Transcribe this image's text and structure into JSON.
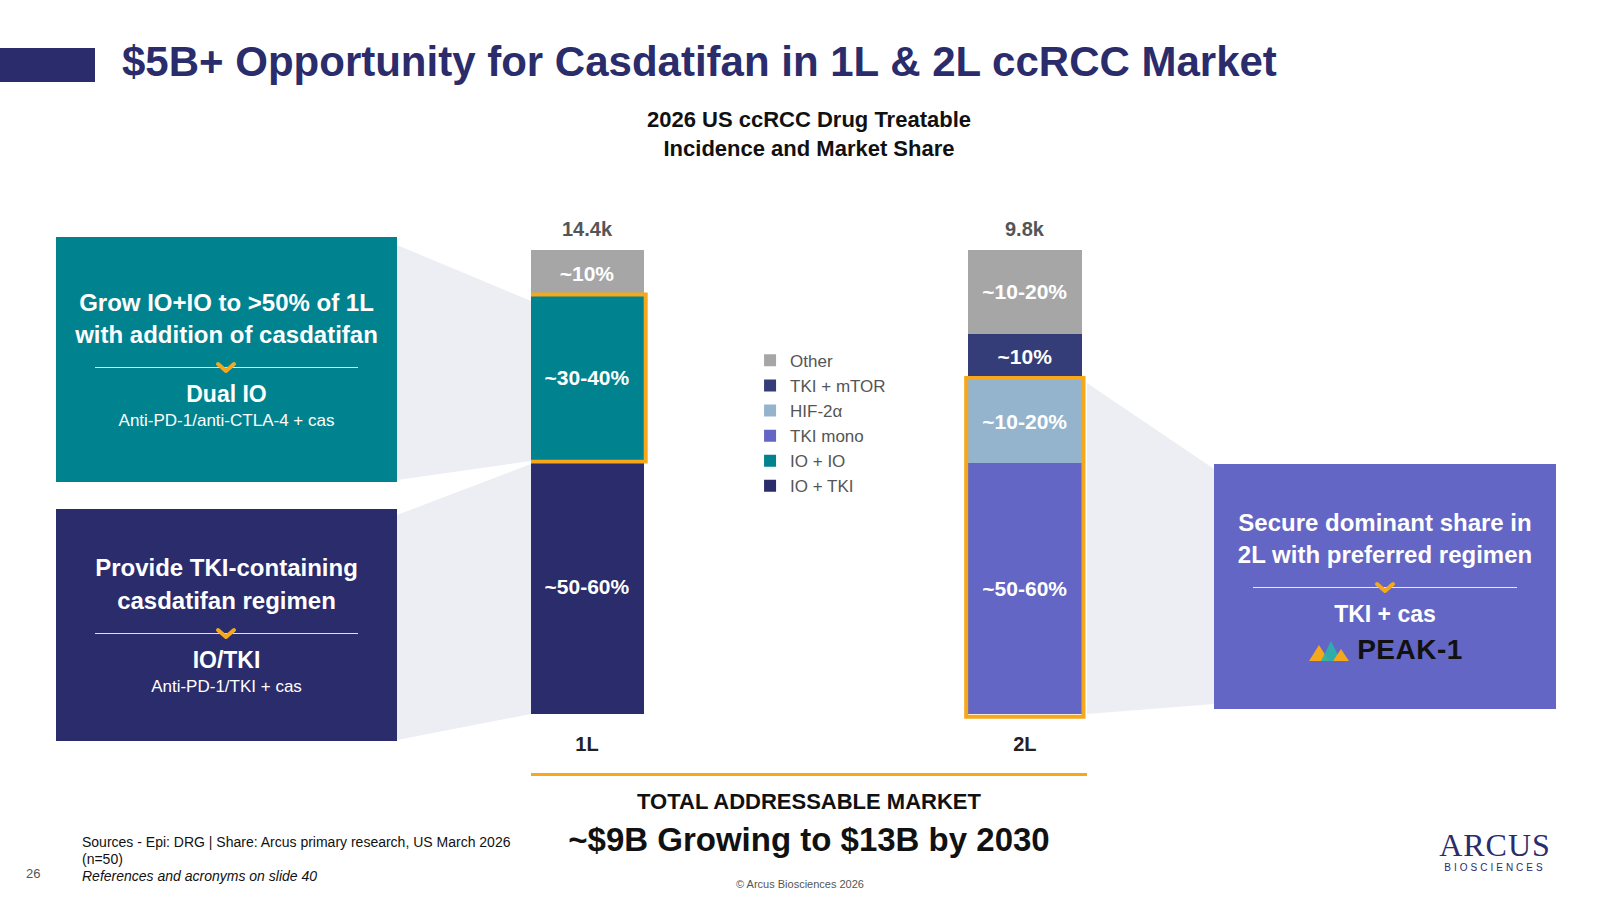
{
  "header": {
    "title": "$5B+ Opportunity for Casdatifan in 1L & 2L ccRCC Market"
  },
  "chart_data": {
    "type": "bar",
    "title": "2026 US ccRCC Drug Treatable Incidence and Market Share",
    "categories": [
      "1L",
      "2L"
    ],
    "series": [
      {
        "name": "IO + TKI",
        "color": "#2a2c6b",
        "values": [
          55,
          null
        ],
        "value_labels": [
          "~50-60%",
          null
        ]
      },
      {
        "name": "IO + IO",
        "color": "#00838f",
        "values": [
          35,
          null
        ],
        "value_labels": [
          "~30-40%",
          null
        ]
      },
      {
        "name": "TKI mono",
        "color": "#6366c4",
        "values": [
          null,
          54
        ],
        "value_labels": [
          null,
          "~50-60%"
        ]
      },
      {
        "name": "HIF-2α",
        "color": "#93b4cc",
        "values": [
          null,
          18
        ],
        "value_labels": [
          null,
          "~10-20%"
        ]
      },
      {
        "name": "TKI + mTOR",
        "color": "#343d78",
        "values": [
          null,
          10
        ],
        "value_labels": [
          null,
          "~10%"
        ]
      },
      {
        "name": "Other",
        "color": "#a6a6a6",
        "values": [
          10,
          18
        ],
        "value_labels": [
          "~10%",
          "~10-20%"
        ]
      }
    ],
    "totals": [
      {
        "value": 14400,
        "label": "14.4k"
      },
      {
        "value": 9800,
        "label": "9.8k"
      }
    ],
    "stacked": true,
    "data_labels": true,
    "tick_labels": "x",
    "ylim": [
      0,
      100
    ],
    "yticks": [],
    "grid": false,
    "legend": "center"
  },
  "total_market": {
    "label": "TOTAL ADDRESSABLE MARKET",
    "text": "~$9B Growing to $13B by 2030"
  },
  "panels": [
    {
      "headline": "Grow IO+IO to >50% of 1L with addition of casdatifan",
      "name": "Dual IO",
      "detail": "Anti-PD-1/anti-CTLA-4 + cas"
    },
    {
      "headline": "Provide TKI-containing casdatifan regimen",
      "name": "IO/TKI",
      "detail": "Anti-PD-1/TKI + cas"
    },
    {
      "headline": "Secure dominant share in 2L with preferred regimen",
      "name": "TKI + cas",
      "trial": "PEAK-1"
    }
  ],
  "footer": {
    "sources": "Sources - Epi: DRG | Share: Arcus primary research, US March 2026 (n=50)",
    "references": "References and acronyms on slide 40",
    "page": "26",
    "copyright": "© Arcus Biosciences 2026",
    "logo": {
      "name": "ARCUS",
      "sub": "BIOSCIENCES"
    }
  }
}
